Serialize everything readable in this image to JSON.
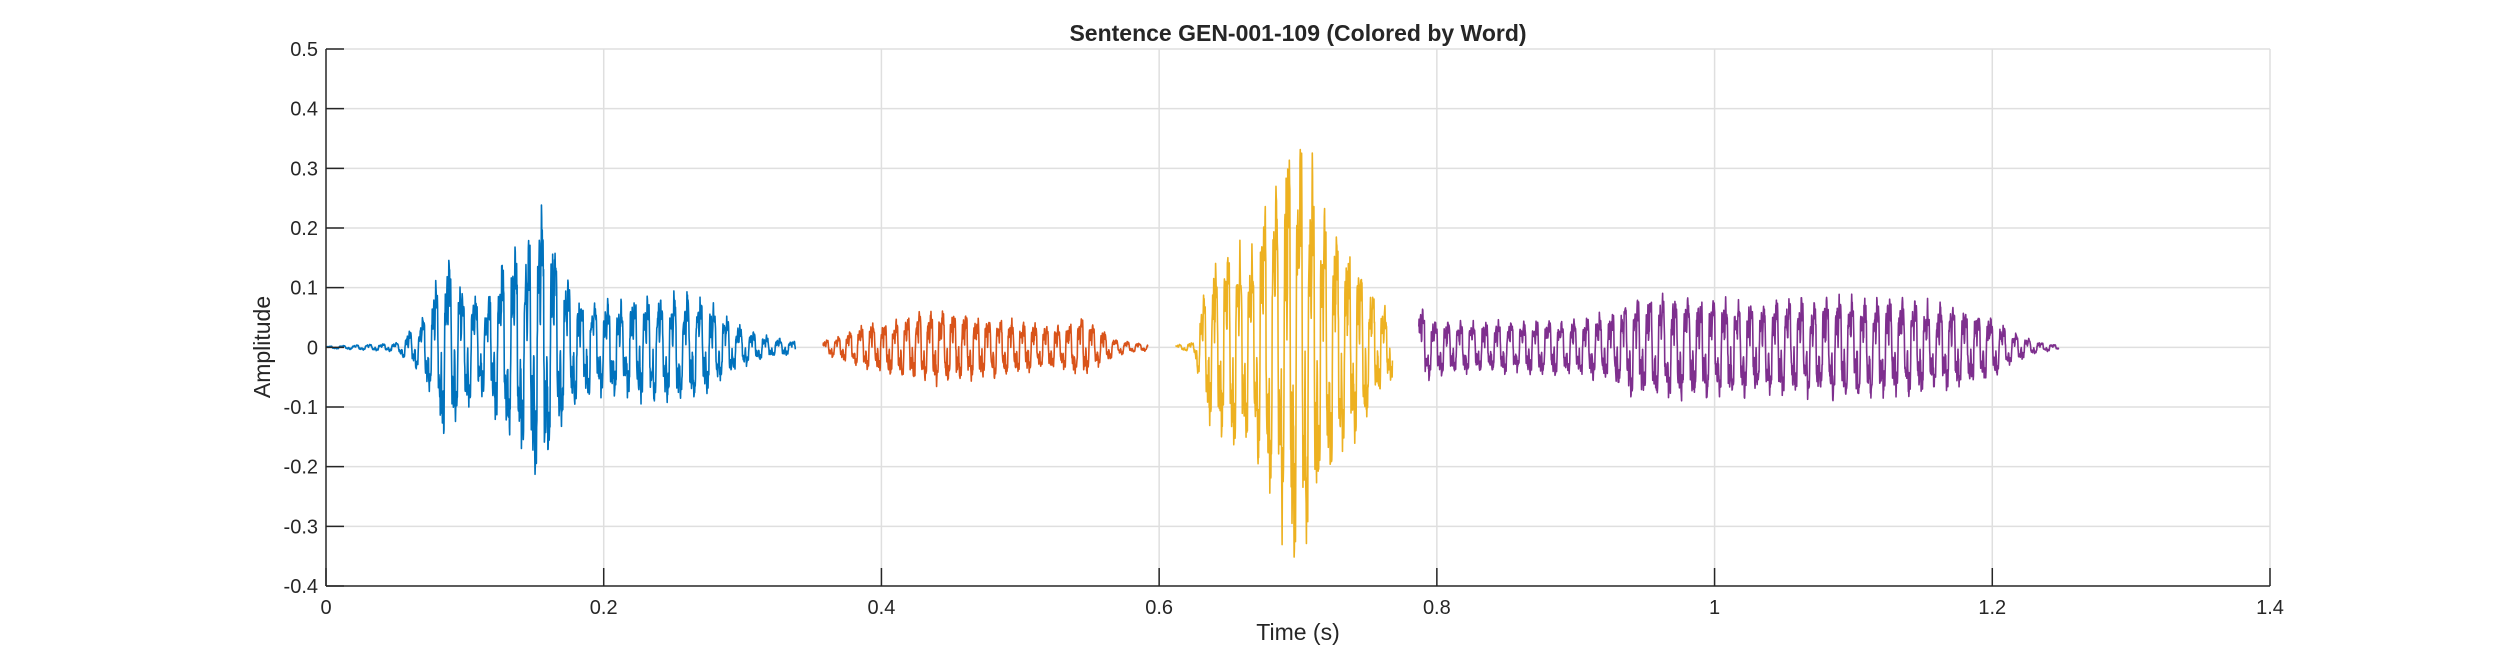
{
  "chart_data": {
    "type": "line",
    "title": "Sentence GEN-001-109 (Colored by Word)",
    "xlabel": "Time (s)",
    "ylabel": "Amplitude",
    "xlim": [
      0,
      1.4
    ],
    "ylim": [
      -0.4,
      0.5
    ],
    "xticks": [
      0,
      0.2,
      0.4,
      0.6,
      0.8,
      1,
      1.2,
      1.4
    ],
    "xtick_labels": [
      "0",
      "0.2",
      "0.4",
      "0.6",
      "0.8",
      "1",
      "1.2",
      "1.4"
    ],
    "yticks": [
      -0.4,
      -0.3,
      -0.2,
      -0.1,
      0,
      0.1,
      0.2,
      0.3,
      0.4,
      0.5
    ],
    "ytick_labels": [
      "-0.4",
      "-0.3",
      "-0.2",
      "-0.1",
      "0",
      "0.1",
      "0.2",
      "0.3",
      "0.4",
      "0.5"
    ],
    "grid": true,
    "series": [
      {
        "color": "#0072BD",
        "t_start": 0.0,
        "t_end": 0.338,
        "freq": 105,
        "envelope": [
          [
            0.0,
            0.002
          ],
          [
            0.05,
            0.008
          ],
          [
            0.065,
            0.04
          ],
          [
            0.075,
            0.09
          ],
          [
            0.085,
            0.19
          ],
          [
            0.095,
            0.14
          ],
          [
            0.105,
            0.1
          ],
          [
            0.115,
            0.09
          ],
          [
            0.125,
            0.16
          ],
          [
            0.135,
            0.21
          ],
          [
            0.145,
            0.2
          ],
          [
            0.155,
            0.27
          ],
          [
            0.16,
            0.24
          ],
          [
            0.17,
            0.14
          ],
          [
            0.185,
            0.1
          ],
          [
            0.2,
            0.09
          ],
          [
            0.215,
            0.09
          ],
          [
            0.23,
            0.11
          ],
          [
            0.245,
            0.1
          ],
          [
            0.26,
            0.11
          ],
          [
            0.275,
            0.09
          ],
          [
            0.29,
            0.055
          ],
          [
            0.305,
            0.03
          ],
          [
            0.32,
            0.02
          ],
          [
            0.338,
            0.012
          ]
        ]
      },
      {
        "color": "#D95319",
        "t_start": 0.358,
        "t_end": 0.592,
        "freq": 120,
        "envelope": [
          [
            0.358,
            0.012
          ],
          [
            0.375,
            0.03
          ],
          [
            0.39,
            0.045
          ],
          [
            0.41,
            0.055
          ],
          [
            0.43,
            0.07
          ],
          [
            0.45,
            0.068
          ],
          [
            0.47,
            0.06
          ],
          [
            0.49,
            0.055
          ],
          [
            0.51,
            0.045
          ],
          [
            0.53,
            0.04
          ],
          [
            0.545,
            0.06
          ],
          [
            0.555,
            0.04
          ],
          [
            0.57,
            0.015
          ],
          [
            0.592,
            0.006
          ]
        ]
      },
      {
        "color": "#EDB120",
        "t_start": 0.612,
        "t_end": 0.768,
        "freq": 115,
        "envelope": [
          [
            0.612,
            0.004
          ],
          [
            0.625,
            0.01
          ],
          [
            0.635,
            0.14
          ],
          [
            0.645,
            0.18
          ],
          [
            0.655,
            0.2
          ],
          [
            0.665,
            0.19
          ],
          [
            0.675,
            0.28
          ],
          [
            0.685,
            0.33
          ],
          [
            0.695,
            0.43
          ],
          [
            0.705,
            0.4
          ],
          [
            0.715,
            0.3
          ],
          [
            0.725,
            0.24
          ],
          [
            0.735,
            0.2
          ],
          [
            0.745,
            0.17
          ],
          [
            0.755,
            0.1
          ],
          [
            0.768,
            0.06
          ]
        ]
      },
      {
        "color": "#7E2F8E",
        "t_start": 0.787,
        "t_end": 1.248,
        "freq": 110,
        "envelope": [
          [
            0.787,
            0.09
          ],
          [
            0.795,
            0.06
          ],
          [
            0.81,
            0.05
          ],
          [
            0.85,
            0.05
          ],
          [
            0.9,
            0.055
          ],
          [
            0.925,
            0.065
          ],
          [
            0.935,
            0.09
          ],
          [
            0.96,
            0.1
          ],
          [
            1.0,
            0.095
          ],
          [
            1.05,
            0.09
          ],
          [
            1.1,
            0.1
          ],
          [
            1.15,
            0.09
          ],
          [
            1.18,
            0.075
          ],
          [
            1.2,
            0.06
          ],
          [
            1.215,
            0.03
          ],
          [
            1.23,
            0.012
          ],
          [
            1.248,
            0.004
          ]
        ]
      }
    ]
  }
}
